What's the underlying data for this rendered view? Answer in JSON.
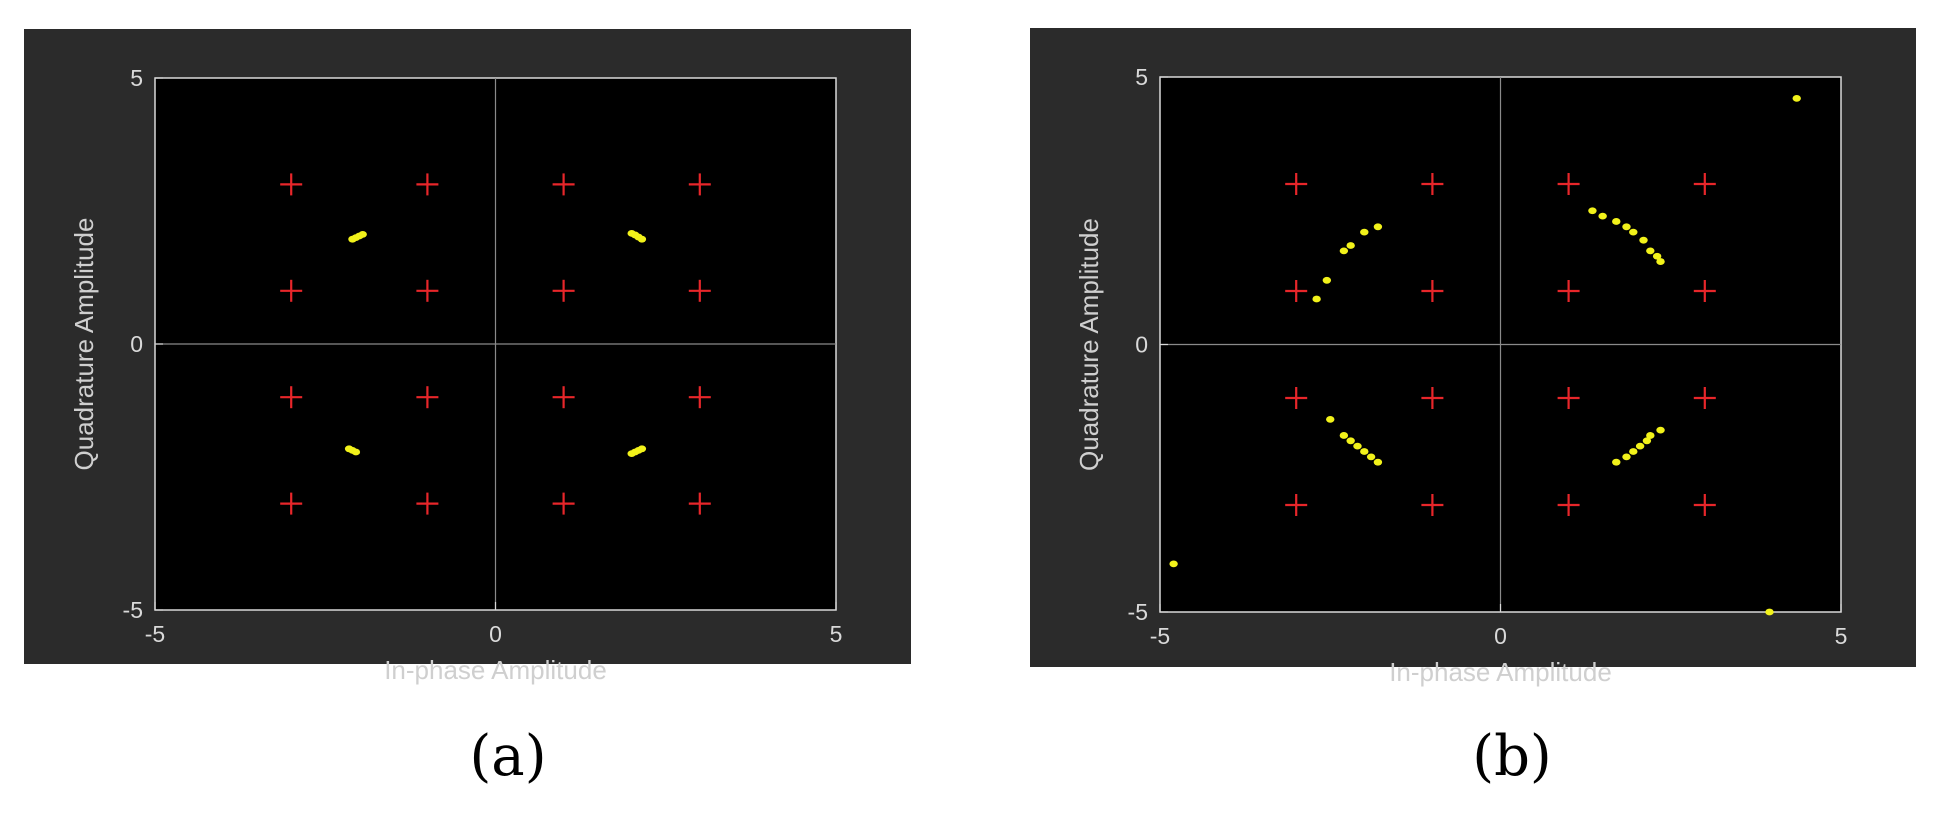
{
  "chart_data": [
    {
      "type": "scatter",
      "caption": "(a)",
      "xlabel": "In-phase Amplitude",
      "ylabel": "Quadrature Amplitude",
      "xlim": [
        -5,
        5
      ],
      "ylim": [
        -5,
        5
      ],
      "xticks": [
        -5,
        0,
        5
      ],
      "yticks": [
        -5,
        0,
        5
      ],
      "grid": false,
      "colors": {
        "panel": "#2b2b2b",
        "plot": "#000000",
        "reference": "#e8262a",
        "received": "#f2f21a",
        "axis": "#d9d9d9"
      },
      "series": [
        {
          "marker": "plus",
          "points": [
            [
              -3,
              3
            ],
            [
              -1,
              3
            ],
            [
              1,
              3
            ],
            [
              3,
              3
            ],
            [
              -3,
              1
            ],
            [
              -1,
              1
            ],
            [
              1,
              1
            ],
            [
              3,
              1
            ],
            [
              -3,
              -1
            ],
            [
              -1,
              -1
            ],
            [
              1,
              -1
            ],
            [
              3,
              -1
            ],
            [
              -3,
              -3
            ],
            [
              -1,
              -3
            ],
            [
              1,
              -3
            ],
            [
              3,
              -3
            ]
          ]
        },
        {
          "marker": "dot",
          "points": [
            [
              -2.1,
              1.97
            ],
            [
              -2.05,
              2.0
            ],
            [
              -2.0,
              2.03
            ],
            [
              -1.95,
              2.06
            ],
            [
              2.0,
              2.08
            ],
            [
              2.05,
              2.05
            ],
            [
              2.1,
              2.01
            ],
            [
              2.15,
              1.97
            ],
            [
              -2.15,
              -1.97
            ],
            [
              -2.1,
              -2.0
            ],
            [
              -2.05,
              -2.03
            ],
            [
              2.0,
              -2.06
            ],
            [
              2.05,
              -2.03
            ],
            [
              2.1,
              -2.0
            ],
            [
              2.15,
              -1.97
            ]
          ]
        }
      ]
    },
    {
      "type": "scatter",
      "caption": "(b)",
      "xlabel": "In-phase Amplitude",
      "ylabel": "Quadrature Amplitude",
      "xlim": [
        -5,
        5
      ],
      "ylim": [
        -5,
        5
      ],
      "xticks": [
        -5,
        0,
        5
      ],
      "yticks": [
        -5,
        0,
        5
      ],
      "grid": false,
      "colors": {
        "panel": "#2b2b2b",
        "plot": "#000000",
        "reference": "#e8262a",
        "received": "#f2f21a",
        "axis": "#d9d9d9"
      },
      "series": [
        {
          "marker": "plus",
          "points": [
            [
              -3,
              3
            ],
            [
              -1,
              3
            ],
            [
              1,
              3
            ],
            [
              3,
              3
            ],
            [
              -3,
              1
            ],
            [
              -1,
              1
            ],
            [
              1,
              1
            ],
            [
              3,
              1
            ],
            [
              -3,
              -1
            ],
            [
              -1,
              -1
            ],
            [
              1,
              -1
            ],
            [
              3,
              -1
            ],
            [
              -3,
              -3
            ],
            [
              -1,
              -3
            ],
            [
              1,
              -3
            ],
            [
              3,
              -3
            ]
          ]
        },
        {
          "marker": "dot",
          "points": [
            [
              -1.8,
              2.2
            ],
            [
              -2.0,
              2.1
            ],
            [
              -2.2,
              1.85
            ],
            [
              -2.3,
              1.75
            ],
            [
              -2.55,
              1.2
            ],
            [
              -2.7,
              0.85
            ],
            [
              1.35,
              2.5
            ],
            [
              1.5,
              2.4
            ],
            [
              1.7,
              2.3
            ],
            [
              1.85,
              2.2
            ],
            [
              1.95,
              2.1
            ],
            [
              2.1,
              1.95
            ],
            [
              2.2,
              1.75
            ],
            [
              2.3,
              1.65
            ],
            [
              2.35,
              1.55
            ],
            [
              -2.5,
              -1.4
            ],
            [
              -2.3,
              -1.7
            ],
            [
              -2.2,
              -1.8
            ],
            [
              -2.1,
              -1.9
            ],
            [
              -2.0,
              -2.0
            ],
            [
              -1.9,
              -2.1
            ],
            [
              -1.8,
              -2.2
            ],
            [
              1.7,
              -2.2
            ],
            [
              1.85,
              -2.1
            ],
            [
              1.95,
              -2.0
            ],
            [
              2.05,
              -1.9
            ],
            [
              2.15,
              -1.8
            ],
            [
              2.2,
              -1.7
            ],
            [
              2.35,
              -1.6
            ],
            [
              -4.8,
              -4.1
            ],
            [
              4.35,
              4.6
            ],
            [
              3.95,
              -5.0
            ]
          ]
        }
      ]
    }
  ]
}
